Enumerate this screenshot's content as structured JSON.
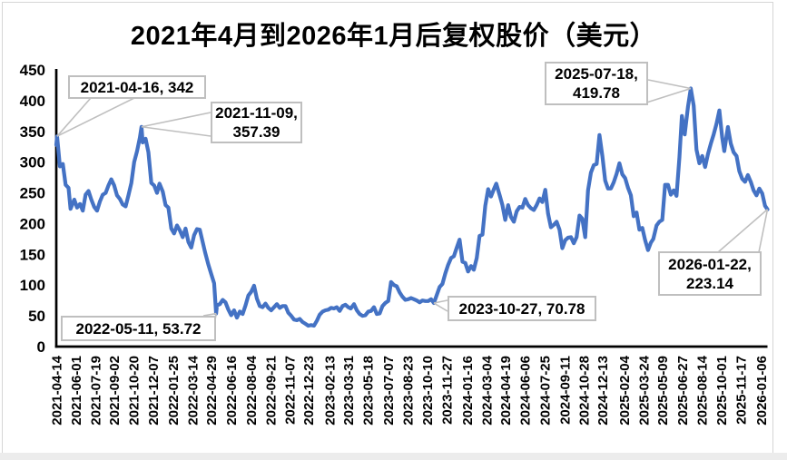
{
  "title": "2021年4月到2026年1月后复权股价（美元）",
  "colors": {
    "series": "#4472C4",
    "axis": "#000000",
    "callout": "#bfbfbf",
    "label_text": "#000000"
  },
  "chart_data": {
    "type": "line",
    "title": "2021年4月到2026年1月后复权股价（美元）",
    "xlabel": "",
    "ylabel": "",
    "ylim": [
      0,
      450
    ],
    "grid": false,
    "legend": false,
    "y_ticks": [
      0,
      50,
      100,
      150,
      200,
      250,
      300,
      350,
      400,
      450
    ],
    "x_range": [
      "2021-04-14",
      "2026-01-22"
    ],
    "x_tick_labels": [
      "2021-04-14",
      "2021-06-01",
      "2021-07-19",
      "2021-09-02",
      "2021-10-20",
      "2021-12-07",
      "2022-01-25",
      "2022-03-14",
      "2022-04-29",
      "2022-06-16",
      "2022-08-04",
      "2022-09-21",
      "2022-11-07",
      "2022-12-23",
      "2023-02-13",
      "2023-03-31",
      "2023-05-18",
      "2023-07-07",
      "2023-08-23",
      "2023-10-10",
      "2023-11-27",
      "2024-01-16",
      "2024-03-04",
      "2024-04-19",
      "2024-06-06",
      "2024-07-25",
      "2024-09-11",
      "2024-10-28",
      "2024-12-13",
      "2025-02-04",
      "2025-03-24",
      "2025-05-09",
      "2025-06-27",
      "2025-08-14",
      "2025-10-01",
      "2025-11-17",
      "2026-01-06"
    ],
    "points": [
      [
        "2021-04-14",
        328
      ],
      [
        "2021-04-16",
        342
      ],
      [
        "2021-04-23",
        293
      ],
      [
        "2021-04-30",
        297
      ],
      [
        "2021-05-07",
        263
      ],
      [
        "2021-05-14",
        258
      ],
      [
        "2021-05-19",
        224
      ],
      [
        "2021-05-28",
        239
      ],
      [
        "2021-06-04",
        226
      ],
      [
        "2021-06-11",
        232
      ],
      [
        "2021-06-18",
        221
      ],
      [
        "2021-06-25",
        247
      ],
      [
        "2021-07-02",
        253
      ],
      [
        "2021-07-09",
        239
      ],
      [
        "2021-07-16",
        227
      ],
      [
        "2021-07-23",
        221
      ],
      [
        "2021-07-30",
        236
      ],
      [
        "2021-08-06",
        247
      ],
      [
        "2021-08-13",
        250
      ],
      [
        "2021-08-20",
        262
      ],
      [
        "2021-08-27",
        272
      ],
      [
        "2021-09-03",
        262
      ],
      [
        "2021-09-10",
        246
      ],
      [
        "2021-09-17",
        240
      ],
      [
        "2021-09-24",
        231
      ],
      [
        "2021-10-01",
        228
      ],
      [
        "2021-10-08",
        246
      ],
      [
        "2021-10-15",
        266
      ],
      [
        "2021-10-22",
        300
      ],
      [
        "2021-10-29",
        318
      ],
      [
        "2021-11-05",
        340
      ],
      [
        "2021-11-09",
        357.39
      ],
      [
        "2021-11-12",
        332
      ],
      [
        "2021-11-19",
        338
      ],
      [
        "2021-11-26",
        316
      ],
      [
        "2021-12-03",
        266
      ],
      [
        "2021-12-10",
        262
      ],
      [
        "2021-12-17",
        250
      ],
      [
        "2021-12-23",
        265
      ],
      [
        "2021-12-31",
        252
      ],
      [
        "2022-01-07",
        230
      ],
      [
        "2022-01-14",
        226
      ],
      [
        "2022-01-21",
        192
      ],
      [
        "2022-01-28",
        184
      ],
      [
        "2022-02-04",
        197
      ],
      [
        "2022-02-11",
        189
      ],
      [
        "2022-02-18",
        178
      ],
      [
        "2022-02-25",
        192
      ],
      [
        "2022-03-04",
        170
      ],
      [
        "2022-03-11",
        161
      ],
      [
        "2022-03-18",
        181
      ],
      [
        "2022-03-25",
        191
      ],
      [
        "2022-04-01",
        190
      ],
      [
        "2022-04-08",
        170
      ],
      [
        "2022-04-14",
        153
      ],
      [
        "2022-04-22",
        133
      ],
      [
        "2022-04-29",
        118
      ],
      [
        "2022-05-06",
        103
      ],
      [
        "2022-05-11",
        53.72
      ],
      [
        "2022-05-13",
        67
      ],
      [
        "2022-05-20",
        69
      ],
      [
        "2022-05-27",
        76
      ],
      [
        "2022-06-03",
        72
      ],
      [
        "2022-06-10",
        60
      ],
      [
        "2022-06-17",
        51
      ],
      [
        "2022-06-24",
        59
      ],
      [
        "2022-07-01",
        47
      ],
      [
        "2022-07-08",
        57
      ],
      [
        "2022-07-15",
        53
      ],
      [
        "2022-07-22",
        67
      ],
      [
        "2022-07-29",
        83
      ],
      [
        "2022-08-05",
        89
      ],
      [
        "2022-08-12",
        99
      ],
      [
        "2022-08-19",
        78
      ],
      [
        "2022-08-26",
        66
      ],
      [
        "2022-09-02",
        64
      ],
      [
        "2022-09-09",
        70
      ],
      [
        "2022-09-16",
        63
      ],
      [
        "2022-09-23",
        59
      ],
      [
        "2022-09-30",
        64
      ],
      [
        "2022-10-07",
        69
      ],
      [
        "2022-10-14",
        63
      ],
      [
        "2022-10-21",
        66
      ],
      [
        "2022-10-28",
        66
      ],
      [
        "2022-11-04",
        55
      ],
      [
        "2022-11-11",
        50
      ],
      [
        "2022-11-18",
        44
      ],
      [
        "2022-11-25",
        43
      ],
      [
        "2022-12-02",
        45
      ],
      [
        "2022-12-09",
        40
      ],
      [
        "2022-12-16",
        37
      ],
      [
        "2022-12-23",
        34
      ],
      [
        "2022-12-30",
        35
      ],
      [
        "2023-01-06",
        34
      ],
      [
        "2023-01-13",
        42
      ],
      [
        "2023-01-20",
        52
      ],
      [
        "2023-01-27",
        57
      ],
      [
        "2023-02-03",
        59
      ],
      [
        "2023-02-10",
        60
      ],
      [
        "2023-02-17",
        63
      ],
      [
        "2023-02-24",
        62
      ],
      [
        "2023-03-03",
        64
      ],
      [
        "2023-03-10",
        58
      ],
      [
        "2023-03-17",
        66
      ],
      [
        "2023-03-24",
        68
      ],
      [
        "2023-03-31",
        64
      ],
      [
        "2023-04-06",
        62
      ],
      [
        "2023-04-14",
        69
      ],
      [
        "2023-04-21",
        59
      ],
      [
        "2023-04-28",
        53
      ],
      [
        "2023-05-05",
        50
      ],
      [
        "2023-05-12",
        51
      ],
      [
        "2023-05-19",
        57
      ],
      [
        "2023-05-26",
        58
      ],
      [
        "2023-06-02",
        64
      ],
      [
        "2023-06-09",
        53
      ],
      [
        "2023-06-16",
        54
      ],
      [
        "2023-06-23",
        66
      ],
      [
        "2023-06-30",
        71
      ],
      [
        "2023-07-07",
        74
      ],
      [
        "2023-07-14",
        105
      ],
      [
        "2023-07-21",
        100
      ],
      [
        "2023-07-28",
        98
      ],
      [
        "2023-08-04",
        88
      ],
      [
        "2023-08-11",
        81
      ],
      [
        "2023-08-18",
        76
      ],
      [
        "2023-08-25",
        77
      ],
      [
        "2023-09-01",
        79
      ],
      [
        "2023-09-08",
        77
      ],
      [
        "2023-09-15",
        75
      ],
      [
        "2023-09-22",
        72
      ],
      [
        "2023-09-29",
        75
      ],
      [
        "2023-10-06",
        74
      ],
      [
        "2023-10-13",
        74
      ],
      [
        "2023-10-20",
        77
      ],
      [
        "2023-10-27",
        70.78
      ],
      [
        "2023-11-03",
        84
      ],
      [
        "2023-11-10",
        97
      ],
      [
        "2023-11-17",
        102
      ],
      [
        "2023-11-24",
        119
      ],
      [
        "2023-12-01",
        133
      ],
      [
        "2023-12-08",
        144
      ],
      [
        "2023-12-15",
        147
      ],
      [
        "2023-12-22",
        161
      ],
      [
        "2023-12-29",
        174
      ],
      [
        "2024-01-05",
        138
      ],
      [
        "2024-01-12",
        136
      ],
      [
        "2024-01-19",
        122
      ],
      [
        "2024-01-26",
        131
      ],
      [
        "2024-02-02",
        125
      ],
      [
        "2024-02-09",
        144
      ],
      [
        "2024-02-16",
        180
      ],
      [
        "2024-02-23",
        182
      ],
      [
        "2024-03-01",
        229
      ],
      [
        "2024-03-08",
        256
      ],
      [
        "2024-03-15",
        244
      ],
      [
        "2024-03-22",
        256
      ],
      [
        "2024-03-28",
        265
      ],
      [
        "2024-04-05",
        247
      ],
      [
        "2024-04-12",
        230
      ],
      [
        "2024-04-19",
        206
      ],
      [
        "2024-04-26",
        230
      ],
      [
        "2024-05-03",
        211
      ],
      [
        "2024-05-10",
        203
      ],
      [
        "2024-05-17",
        220
      ],
      [
        "2024-05-24",
        227
      ],
      [
        "2024-05-31",
        226
      ],
      [
        "2024-06-07",
        240
      ],
      [
        "2024-06-14",
        230
      ],
      [
        "2024-06-21",
        225
      ],
      [
        "2024-06-28",
        222
      ],
      [
        "2024-07-05",
        230
      ],
      [
        "2024-07-12",
        241
      ],
      [
        "2024-07-19",
        235
      ],
      [
        "2024-07-26",
        255
      ],
      [
        "2024-08-02",
        216
      ],
      [
        "2024-08-09",
        194
      ],
      [
        "2024-08-16",
        198
      ],
      [
        "2024-08-23",
        203
      ],
      [
        "2024-08-30",
        190
      ],
      [
        "2024-09-06",
        160
      ],
      [
        "2024-09-13",
        173
      ],
      [
        "2024-09-20",
        177
      ],
      [
        "2024-09-27",
        178
      ],
      [
        "2024-10-04",
        168
      ],
      [
        "2024-10-11",
        178
      ],
      [
        "2024-10-18",
        213
      ],
      [
        "2024-10-25",
        208
      ],
      [
        "2024-11-01",
        178
      ],
      [
        "2024-11-08",
        254
      ],
      [
        "2024-11-15",
        283
      ],
      [
        "2024-11-22",
        295
      ],
      [
        "2024-11-29",
        297
      ],
      [
        "2024-12-06",
        344
      ],
      [
        "2024-12-13",
        310
      ],
      [
        "2024-12-20",
        270
      ],
      [
        "2024-12-27",
        257
      ],
      [
        "2025-01-03",
        257
      ],
      [
        "2025-01-10",
        267
      ],
      [
        "2025-01-17",
        281
      ],
      [
        "2025-01-24",
        298
      ],
      [
        "2025-01-31",
        280
      ],
      [
        "2025-02-07",
        274
      ],
      [
        "2025-02-14",
        258
      ],
      [
        "2025-02-21",
        246
      ],
      [
        "2025-02-28",
        212
      ],
      [
        "2025-03-07",
        218
      ],
      [
        "2025-03-14",
        190
      ],
      [
        "2025-03-21",
        193
      ],
      [
        "2025-03-28",
        173
      ],
      [
        "2025-04-04",
        157
      ],
      [
        "2025-04-11",
        169
      ],
      [
        "2025-04-17",
        175
      ],
      [
        "2025-04-25",
        197
      ],
      [
        "2025-05-02",
        203
      ],
      [
        "2025-05-09",
        206
      ],
      [
        "2025-05-16",
        263
      ],
      [
        "2025-05-23",
        263
      ],
      [
        "2025-05-30",
        247
      ],
      [
        "2025-06-06",
        254
      ],
      [
        "2025-06-13",
        245
      ],
      [
        "2025-06-20",
        308
      ],
      [
        "2025-06-26",
        375
      ],
      [
        "2025-07-03",
        345
      ],
      [
        "2025-07-11",
        390
      ],
      [
        "2025-07-18",
        419.78
      ],
      [
        "2025-07-25",
        392
      ],
      [
        "2025-08-01",
        320
      ],
      [
        "2025-08-08",
        298
      ],
      [
        "2025-08-15",
        310
      ],
      [
        "2025-08-22",
        292
      ],
      [
        "2025-08-29",
        313
      ],
      [
        "2025-09-05",
        330
      ],
      [
        "2025-09-12",
        345
      ],
      [
        "2025-09-19",
        362
      ],
      [
        "2025-09-26",
        384
      ],
      [
        "2025-10-03",
        340
      ],
      [
        "2025-10-08",
        318
      ],
      [
        "2025-10-17",
        357
      ],
      [
        "2025-10-24",
        330
      ],
      [
        "2025-10-31",
        316
      ],
      [
        "2025-11-07",
        310
      ],
      [
        "2025-11-14",
        285
      ],
      [
        "2025-11-21",
        273
      ],
      [
        "2025-11-28",
        268
      ],
      [
        "2025-12-05",
        279
      ],
      [
        "2025-12-12",
        268
      ],
      [
        "2025-12-19",
        254
      ],
      [
        "2025-12-26",
        246
      ],
      [
        "2026-01-02",
        257
      ],
      [
        "2026-01-09",
        249
      ],
      [
        "2026-01-16",
        229
      ],
      [
        "2026-01-22",
        223.14
      ]
    ],
    "annotations": [
      {
        "date": "2021-04-16",
        "value": 342,
        "line1": "2021-04-16, 342",
        "line2": ""
      },
      {
        "date": "2021-11-09",
        "value": 357.39,
        "line1": "2021-11-09,",
        "line2": "357.39"
      },
      {
        "date": "2025-07-18",
        "value": 419.78,
        "line1": "2025-07-18,",
        "line2": "419.78"
      },
      {
        "date": "2022-05-11",
        "value": 53.72,
        "line1": "2022-05-11, 53.72",
        "line2": ""
      },
      {
        "date": "2023-10-27",
        "value": 70.78,
        "line1": "2023-10-27, 70.78",
        "line2": ""
      },
      {
        "date": "2026-01-22",
        "value": 223.14,
        "line1": "2026-01-22,",
        "line2": "223.14"
      }
    ]
  }
}
